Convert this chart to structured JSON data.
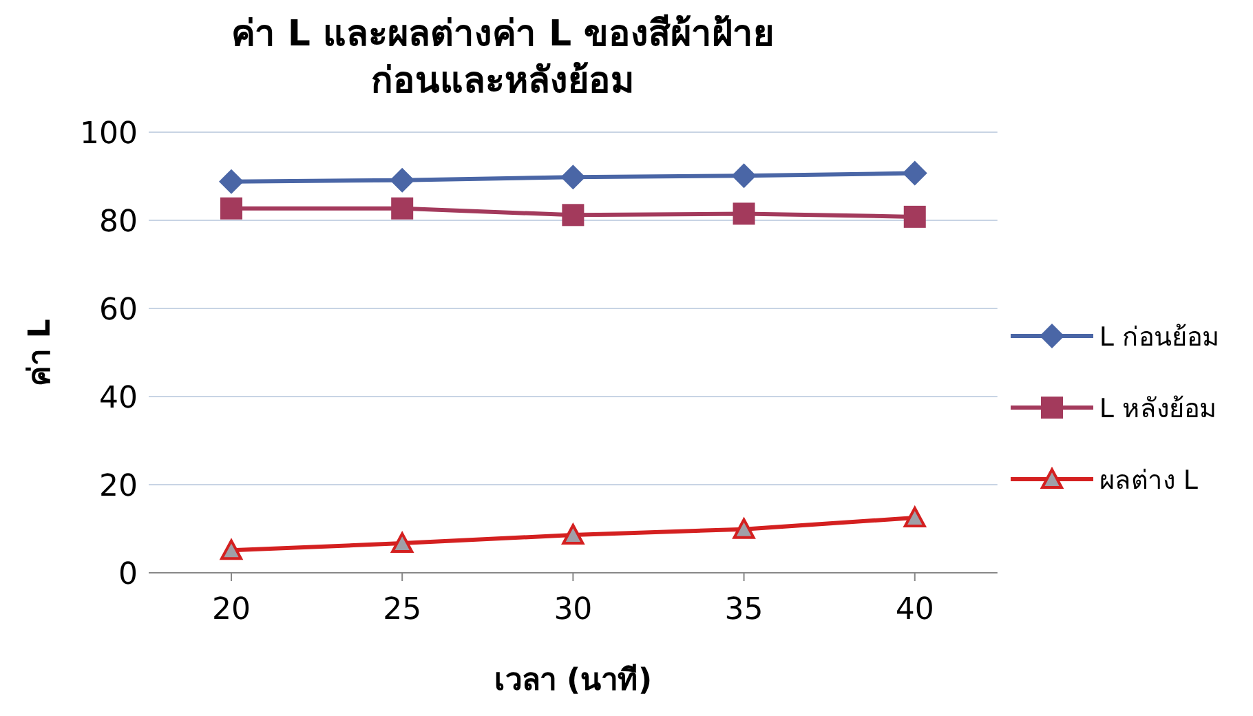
{
  "chart_data": {
    "type": "line",
    "title": "ค่า L และผลต่างค่า L ของสีผ้าฝ้าย\nก่อนและหลังย้อม",
    "xlabel": "เวลา (นาที)",
    "ylabel": "ค่า L",
    "categories": [
      "20",
      "25",
      "30",
      "35",
      "40"
    ],
    "series": [
      {
        "name": "L ก่อนย้อม",
        "color": "#4a66a6",
        "marker": "diamond",
        "values": [
          88.8,
          89.1,
          89.8,
          90.1,
          90.7
        ]
      },
      {
        "name": "L หลังย้อม",
        "color": "#a33a5c",
        "marker": "square",
        "values": [
          82.7,
          82.7,
          81.2,
          81.5,
          80.8
        ]
      },
      {
        "name": "ผลต่าง L",
        "color": "#d42020",
        "marker": "triangle",
        "values": [
          5.1,
          6.7,
          8.6,
          9.9,
          12.5
        ]
      }
    ],
    "ylim": [
      0,
      100
    ],
    "yticks": [
      0,
      20,
      40,
      60,
      80,
      100
    ],
    "grid": "y",
    "legend": "right"
  }
}
